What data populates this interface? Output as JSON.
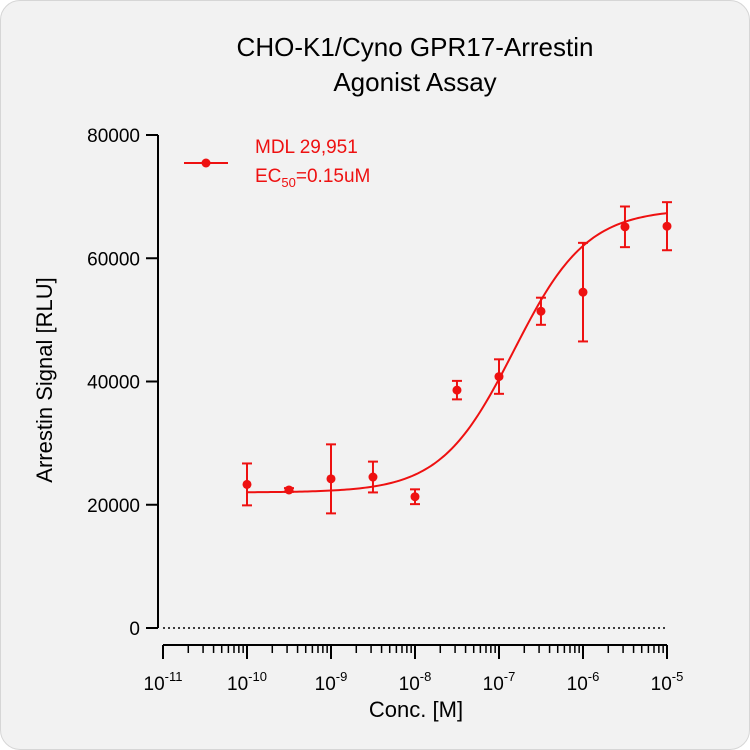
{
  "chart_data": {
    "type": "scatter",
    "title": [
      "CHO-K1/Cyno GPR17-Arrestin",
      "Agonist Assay"
    ],
    "xlabel": "Conc. [M]",
    "ylabel": "Arrestin Signal [RLU]",
    "x_scale": "log",
    "xlim": [
      1e-11,
      1e-05
    ],
    "ylim": [
      0,
      80000
    ],
    "y_ticks": [
      0,
      20000,
      40000,
      60000,
      80000
    ],
    "y_tick_labels": [
      "0",
      "20000",
      "40000",
      "60000",
      "80000"
    ],
    "x_ticks": [
      1e-11,
      1e-10,
      1e-09,
      1e-08,
      1e-07,
      1e-06,
      1e-05
    ],
    "x_tick_base": "10",
    "x_tick_exponents": [
      "-11",
      "-10",
      "-9",
      "-8",
      "-7",
      "-6",
      "-5"
    ],
    "grid": false,
    "zero_line": "dotted",
    "legend": {
      "placement": "top-left",
      "name": "MDL 29,951",
      "ec_prefix": "EC",
      "ec_sub": "50",
      "ec_value": "=0.15uM"
    },
    "series": [
      {
        "name": "MDL 29,951",
        "color": "#ee1111",
        "points": [
          {
            "x": 1e-10,
            "y": 23300,
            "err": 3400
          },
          {
            "x": 3.16e-10,
            "y": 22400,
            "err": 300
          },
          {
            "x": 1e-09,
            "y": 24200,
            "err": 5600
          },
          {
            "x": 3.16e-09,
            "y": 24500,
            "err": 2500
          },
          {
            "x": 1e-08,
            "y": 21300,
            "err": 1200
          },
          {
            "x": 3.16e-08,
            "y": 38600,
            "err": 1500
          },
          {
            "x": 1e-07,
            "y": 40800,
            "err": 2800
          },
          {
            "x": 3.16e-07,
            "y": 51400,
            "err": 2200
          },
          {
            "x": 1e-06,
            "y": 54500,
            "err": 8000
          },
          {
            "x": 3.16e-06,
            "y": 65100,
            "err": 3300
          },
          {
            "x": 1e-05,
            "y": 65200,
            "err": 3900
          }
        ],
        "fit": {
          "bottom": 22000,
          "top": 68000,
          "ec50": 1.5e-07,
          "hill": 1.0
        }
      }
    ]
  }
}
